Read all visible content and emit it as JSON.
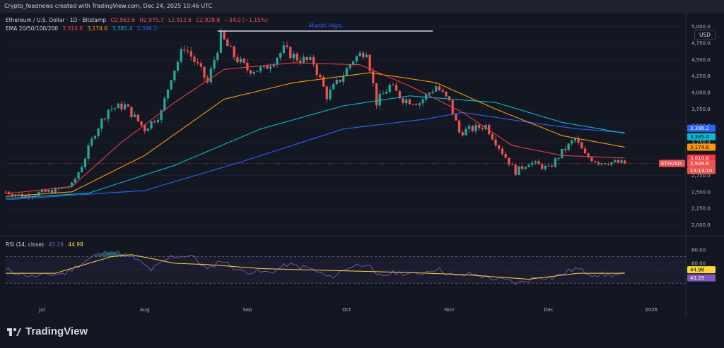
{
  "topbar": {
    "text": "Crypto_feednews created with TradingView.com, Dec 24, 2025 10:46 UTC"
  },
  "legend": {
    "symbol": "Ethereum / U.S. Dollar · 1D · Bitstamp",
    "o": "O2,963.6",
    "h": "H2,975.7",
    "l": "L2,912.6",
    "c": "C2,928.8",
    "chg": "−34.0 (−1.15%)",
    "ema_label": "EMA 20/50/100/200",
    "ema20": "3,010.8",
    "ema50": "3,174.6",
    "ema100": "3,385.4",
    "ema200": "3,396.2"
  },
  "currency_button": "USD",
  "annotation": "Month High",
  "rsi_legend": {
    "label": "RSI (14, close)",
    "rsi": "43.29",
    "ma": "44.98"
  },
  "price_tags": {
    "ema200": "3,396.2",
    "ema100": "3,385.4",
    "ema50": "3,174.6",
    "ema20": "3,010.8",
    "symbol": "ETHUSD",
    "last": "2,928.8",
    "countdown": "13:13:10",
    "rsi_ma": "44.98",
    "rsi": "43.29"
  },
  "colors": {
    "up": "#26a69a",
    "down": "#ef5350",
    "ema20": "#f23645",
    "ema50": "#ff9800",
    "ema100": "#00bcd4",
    "ema200": "#2962ff",
    "rsi": "#7e57c2",
    "rsi_ma": "#fdd835"
  },
  "footer": {
    "brand": "TradingView"
  },
  "chart_data": {
    "type": "candlestick",
    "title": "Ethereum / U.S. Dollar · 1D · Bitstamp",
    "y_ticks": [
      "5,000.0",
      "4,750.0",
      "4,500.0",
      "4,250.0",
      "4,000.0",
      "3,750.0",
      "3,500.0",
      "3,250.0",
      "3,000.0",
      "2,750.0",
      "2,500.0",
      "2,250.0",
      "2,000.0"
    ],
    "ylim": [
      1900,
      5100
    ],
    "x_labels": [
      "Jul",
      "Aug",
      "Sep",
      "Oct",
      "Nov",
      "Dec",
      "2026"
    ],
    "rsi_ticks": [
      "80.00",
      "60.00"
    ],
    "price_anchors": [
      [
        "Jun 20",
        2500
      ],
      [
        "Jun 25",
        2440
      ],
      [
        "Jun 30",
        2480
      ],
      [
        "Jul 5",
        2520
      ],
      [
        "Jul 10",
        2600
      ],
      [
        "Jul 13",
        2900
      ],
      [
        "Jul 17",
        3400
      ],
      [
        "Jul 21",
        3750
      ],
      [
        "Jul 26",
        3800
      ],
      [
        "Aug 1",
        3450
      ],
      [
        "Aug 6",
        3700
      ],
      [
        "Aug 9",
        4250
      ],
      [
        "Aug 13",
        4700
      ],
      [
        "Aug 17",
        4400
      ],
      [
        "Aug 20",
        4150
      ],
      [
        "Aug 24",
        4850
      ],
      [
        "Aug 28",
        4550
      ],
      [
        "Sep 1",
        4350
      ],
      [
        "Sep 6",
        4350
      ],
      [
        "Sep 12",
        4650
      ],
      [
        "Sep 16",
        4520
      ],
      [
        "Sep 21",
        4450
      ],
      [
        "Sep 25",
        3950
      ],
      [
        "Sep 29",
        4200
      ],
      [
        "Oct 3",
        4500
      ],
      [
        "Oct 7",
        4650
      ],
      [
        "Oct 10",
        3850
      ],
      [
        "Oct 14",
        4100
      ],
      [
        "Oct 18",
        3900
      ],
      [
        "Oct 23",
        3850
      ],
      [
        "Oct 28",
        4100
      ],
      [
        "Nov 1",
        3850
      ],
      [
        "Nov 4",
        3400
      ],
      [
        "Nov 8",
        3450
      ],
      [
        "Nov 12",
        3500
      ],
      [
        "Nov 17",
        3100
      ],
      [
        "Nov 21",
        2800
      ],
      [
        "Nov 25",
        2950
      ],
      [
        "Dec 1",
        2850
      ],
      [
        "Dec 5",
        3100
      ],
      [
        "Dec 9",
        3300
      ],
      [
        "Dec 12",
        3050
      ],
      [
        "Dec 16",
        2950
      ],
      [
        "Dec 19",
        2950
      ],
      [
        "Dec 24",
        2928.8
      ]
    ],
    "ema20_anchors": [
      [
        "Jun 20",
        2470
      ],
      [
        "Jul 10",
        2580
      ],
      [
        "Jul 25",
        3250
      ],
      [
        "Aug 10",
        3850
      ],
      [
        "Aug 25",
        4350
      ],
      [
        "Sep 15",
        4450
      ],
      [
        "Oct 5",
        4420
      ],
      [
        "Oct 20",
        4100
      ],
      [
        "Nov 5",
        3700
      ],
      [
        "Nov 20",
        3200
      ],
      [
        "Dec 5",
        3050
      ],
      [
        "Dec 24",
        3010.8
      ]
    ],
    "ema50_anchors": [
      [
        "Jun 20",
        2430
      ],
      [
        "Jul 10",
        2500
      ],
      [
        "Aug 1",
        3050
      ],
      [
        "Aug 25",
        3900
      ],
      [
        "Sep 15",
        4150
      ],
      [
        "Oct 8",
        4300
      ],
      [
        "Oct 28",
        4150
      ],
      [
        "Nov 15",
        3750
      ],
      [
        "Dec 5",
        3350
      ],
      [
        "Dec 24",
        3174.6
      ]
    ],
    "ema100_anchors": [
      [
        "Jun 20",
        2400
      ],
      [
        "Jul 15",
        2480
      ],
      [
        "Aug 10",
        2900
      ],
      [
        "Sep 5",
        3450
      ],
      [
        "Sep 30",
        3800
      ],
      [
        "Oct 20",
        3950
      ],
      [
        "Nov 15",
        3850
      ],
      [
        "Dec 5",
        3550
      ],
      [
        "Dec 24",
        3385.4
      ]
    ],
    "ema200_anchors": [
      [
        "Jun 20",
        2380
      ],
      [
        "Aug 1",
        2520
      ],
      [
        "Aug 30",
        2950
      ],
      [
        "Sep 30",
        3450
      ],
      [
        "Oct 25",
        3600
      ],
      [
        "Nov 5",
        3700
      ],
      [
        "Nov 25",
        3550
      ],
      [
        "Dec 10",
        3450
      ],
      [
        "Dec 24",
        3396.2
      ]
    ],
    "rsi_anchors": [
      [
        "Jun 20",
        50
      ],
      [
        "Jun 28",
        40
      ],
      [
        "Jul 8",
        45
      ],
      [
        "Jul 17",
        72
      ],
      [
        "Jul 22",
        78
      ],
      [
        "Jul 28",
        70
      ],
      [
        "Aug 3",
        50
      ],
      [
        "Aug 9",
        70
      ],
      [
        "Aug 15",
        72
      ],
      [
        "Aug 20",
        50
      ],
      [
        "Aug 24",
        65
      ],
      [
        "Aug 30",
        48
      ],
      [
        "Sep 8",
        46
      ],
      [
        "Sep 13",
        58
      ],
      [
        "Sep 20",
        52
      ],
      [
        "Sep 26",
        38
      ],
      [
        "Oct 2",
        55
      ],
      [
        "Oct 7",
        60
      ],
      [
        "Oct 10",
        40
      ],
      [
        "Oct 16",
        46
      ],
      [
        "Oct 22",
        43
      ],
      [
        "Oct 28",
        52
      ],
      [
        "Nov 3",
        40
      ],
      [
        "Nov 8",
        44
      ],
      [
        "Nov 13",
        38
      ],
      [
        "Nov 18",
        34
      ],
      [
        "Nov 22",
        30
      ],
      [
        "Nov 28",
        40
      ],
      [
        "Dec 2",
        38
      ],
      [
        "Dec 9",
        52
      ],
      [
        "Dec 14",
        44
      ],
      [
        "Dec 18",
        42
      ],
      [
        "Dec 24",
        43.29
      ]
    ],
    "rsi_ma_anchors": [
      [
        "Jun 20",
        45
      ],
      [
        "Jul 5",
        45
      ],
      [
        "Jul 22",
        70
      ],
      [
        "Jul 28",
        73
      ],
      [
        "Aug 10",
        60
      ],
      [
        "Aug 20",
        58
      ],
      [
        "Sep 5",
        52
      ],
      [
        "Sep 20",
        50
      ],
      [
        "Oct 5",
        48
      ],
      [
        "Oct 20",
        46
      ],
      [
        "Nov 5",
        43
      ],
      [
        "Nov 25",
        36
      ],
      [
        "Dec 10",
        45
      ],
      [
        "Dec 24",
        44.98
      ]
    ]
  }
}
